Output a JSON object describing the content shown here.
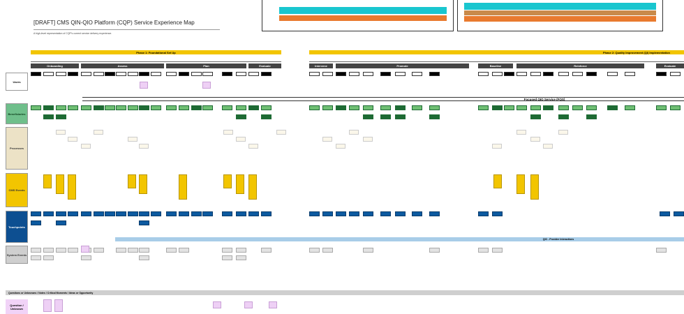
{
  "title": "[DRAFT] CMS QIN-QIO Platform (CQP) Service Experience Map",
  "subtitle": "A high-level representation of CQP's current service delivery experience.",
  "phases": [
    "Phase 1: Foundational Set Up",
    "Phase 2: Quality Improvement (QI) Implementation"
  ],
  "stages": [
    "Onboarding",
    "Assess",
    "Plan",
    "Evaluate",
    "Intervene",
    "Promote",
    "Baseline",
    "Reinforce",
    "Evaluate"
  ],
  "rows": [
    "Users",
    "Beneficiaries",
    "Processes",
    "CMS Events",
    "Touchpoints",
    "System Events"
  ],
  "banners": [
    "Focused QIO Service (FQS)",
    "QIO - Provider Interactions"
  ],
  "notes_header": "Questions or Unknowns / Notes / Critical Moments / Ideas or Opportunity",
  "notes_label": "Question / Unknown"
}
